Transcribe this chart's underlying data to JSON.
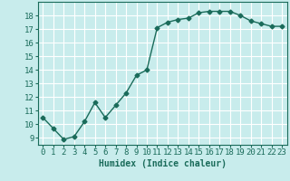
{
  "x": [
    0,
    1,
    2,
    3,
    4,
    5,
    6,
    7,
    8,
    9,
    10,
    11,
    12,
    13,
    14,
    15,
    16,
    17,
    18,
    19,
    20,
    21,
    22,
    23
  ],
  "y": [
    10.5,
    9.7,
    8.9,
    9.1,
    10.2,
    11.6,
    10.5,
    11.4,
    12.3,
    13.6,
    14.0,
    17.1,
    17.5,
    17.7,
    17.8,
    18.2,
    18.3,
    18.3,
    18.3,
    18.0,
    17.6,
    17.4,
    17.2,
    17.2
  ],
  "xlabel": "Humidex (Indice chaleur)",
  "ylim": [
    8.5,
    19.0
  ],
  "xlim": [
    -0.5,
    23.5
  ],
  "line_color": "#1a6b5a",
  "bg_color": "#c8ecec",
  "grid_color": "#ffffff",
  "yticks": [
    9,
    10,
    11,
    12,
    13,
    14,
    15,
    16,
    17,
    18
  ],
  "xticks": [
    0,
    1,
    2,
    3,
    4,
    5,
    6,
    7,
    8,
    9,
    10,
    11,
    12,
    13,
    14,
    15,
    16,
    17,
    18,
    19,
    20,
    21,
    22,
    23
  ],
  "marker": "D",
  "markersize": 2.5,
  "linewidth": 1.0,
  "xlabel_fontsize": 7,
  "tick_fontsize": 6.5
}
